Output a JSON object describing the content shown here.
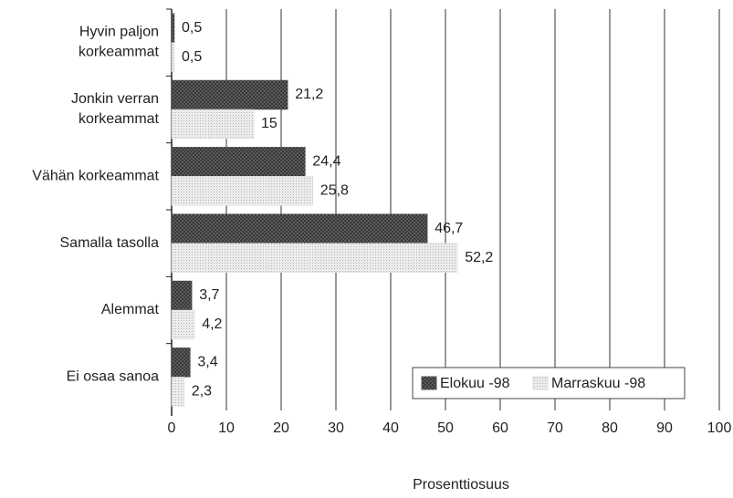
{
  "chart_data": {
    "type": "hbar",
    "categories": [
      "Hyvin paljon\nkorkeammat",
      "Jonkin verran\nkorkeammat",
      "Vähän korkeammat",
      "Samalla tasolla",
      "Alemmat",
      "Ei osaa sanoa"
    ],
    "series": [
      {
        "name": "Elokuu -98",
        "color": "#555555",
        "values": [
          0.5,
          21.2,
          24.4,
          46.7,
          3.7,
          3.4
        ],
        "value_labels": [
          "0,5",
          "21,2",
          "24,4",
          "46,7",
          "3,7",
          "3,4"
        ]
      },
      {
        "name": "Marraskuu -98",
        "color": "#dddddd",
        "values": [
          0.5,
          15,
          25.8,
          52.2,
          4.2,
          2.3
        ],
        "value_labels": [
          "0,5",
          "15",
          "25,8",
          "52,2",
          "4,2",
          "2,3"
        ]
      }
    ],
    "xlim": [
      0,
      100
    ],
    "xticks": [
      0,
      10,
      20,
      30,
      40,
      50,
      60,
      70,
      80,
      90,
      100
    ],
    "x_label": "Prosenttiosuus",
    "grid": true,
    "legend": "lower right"
  }
}
